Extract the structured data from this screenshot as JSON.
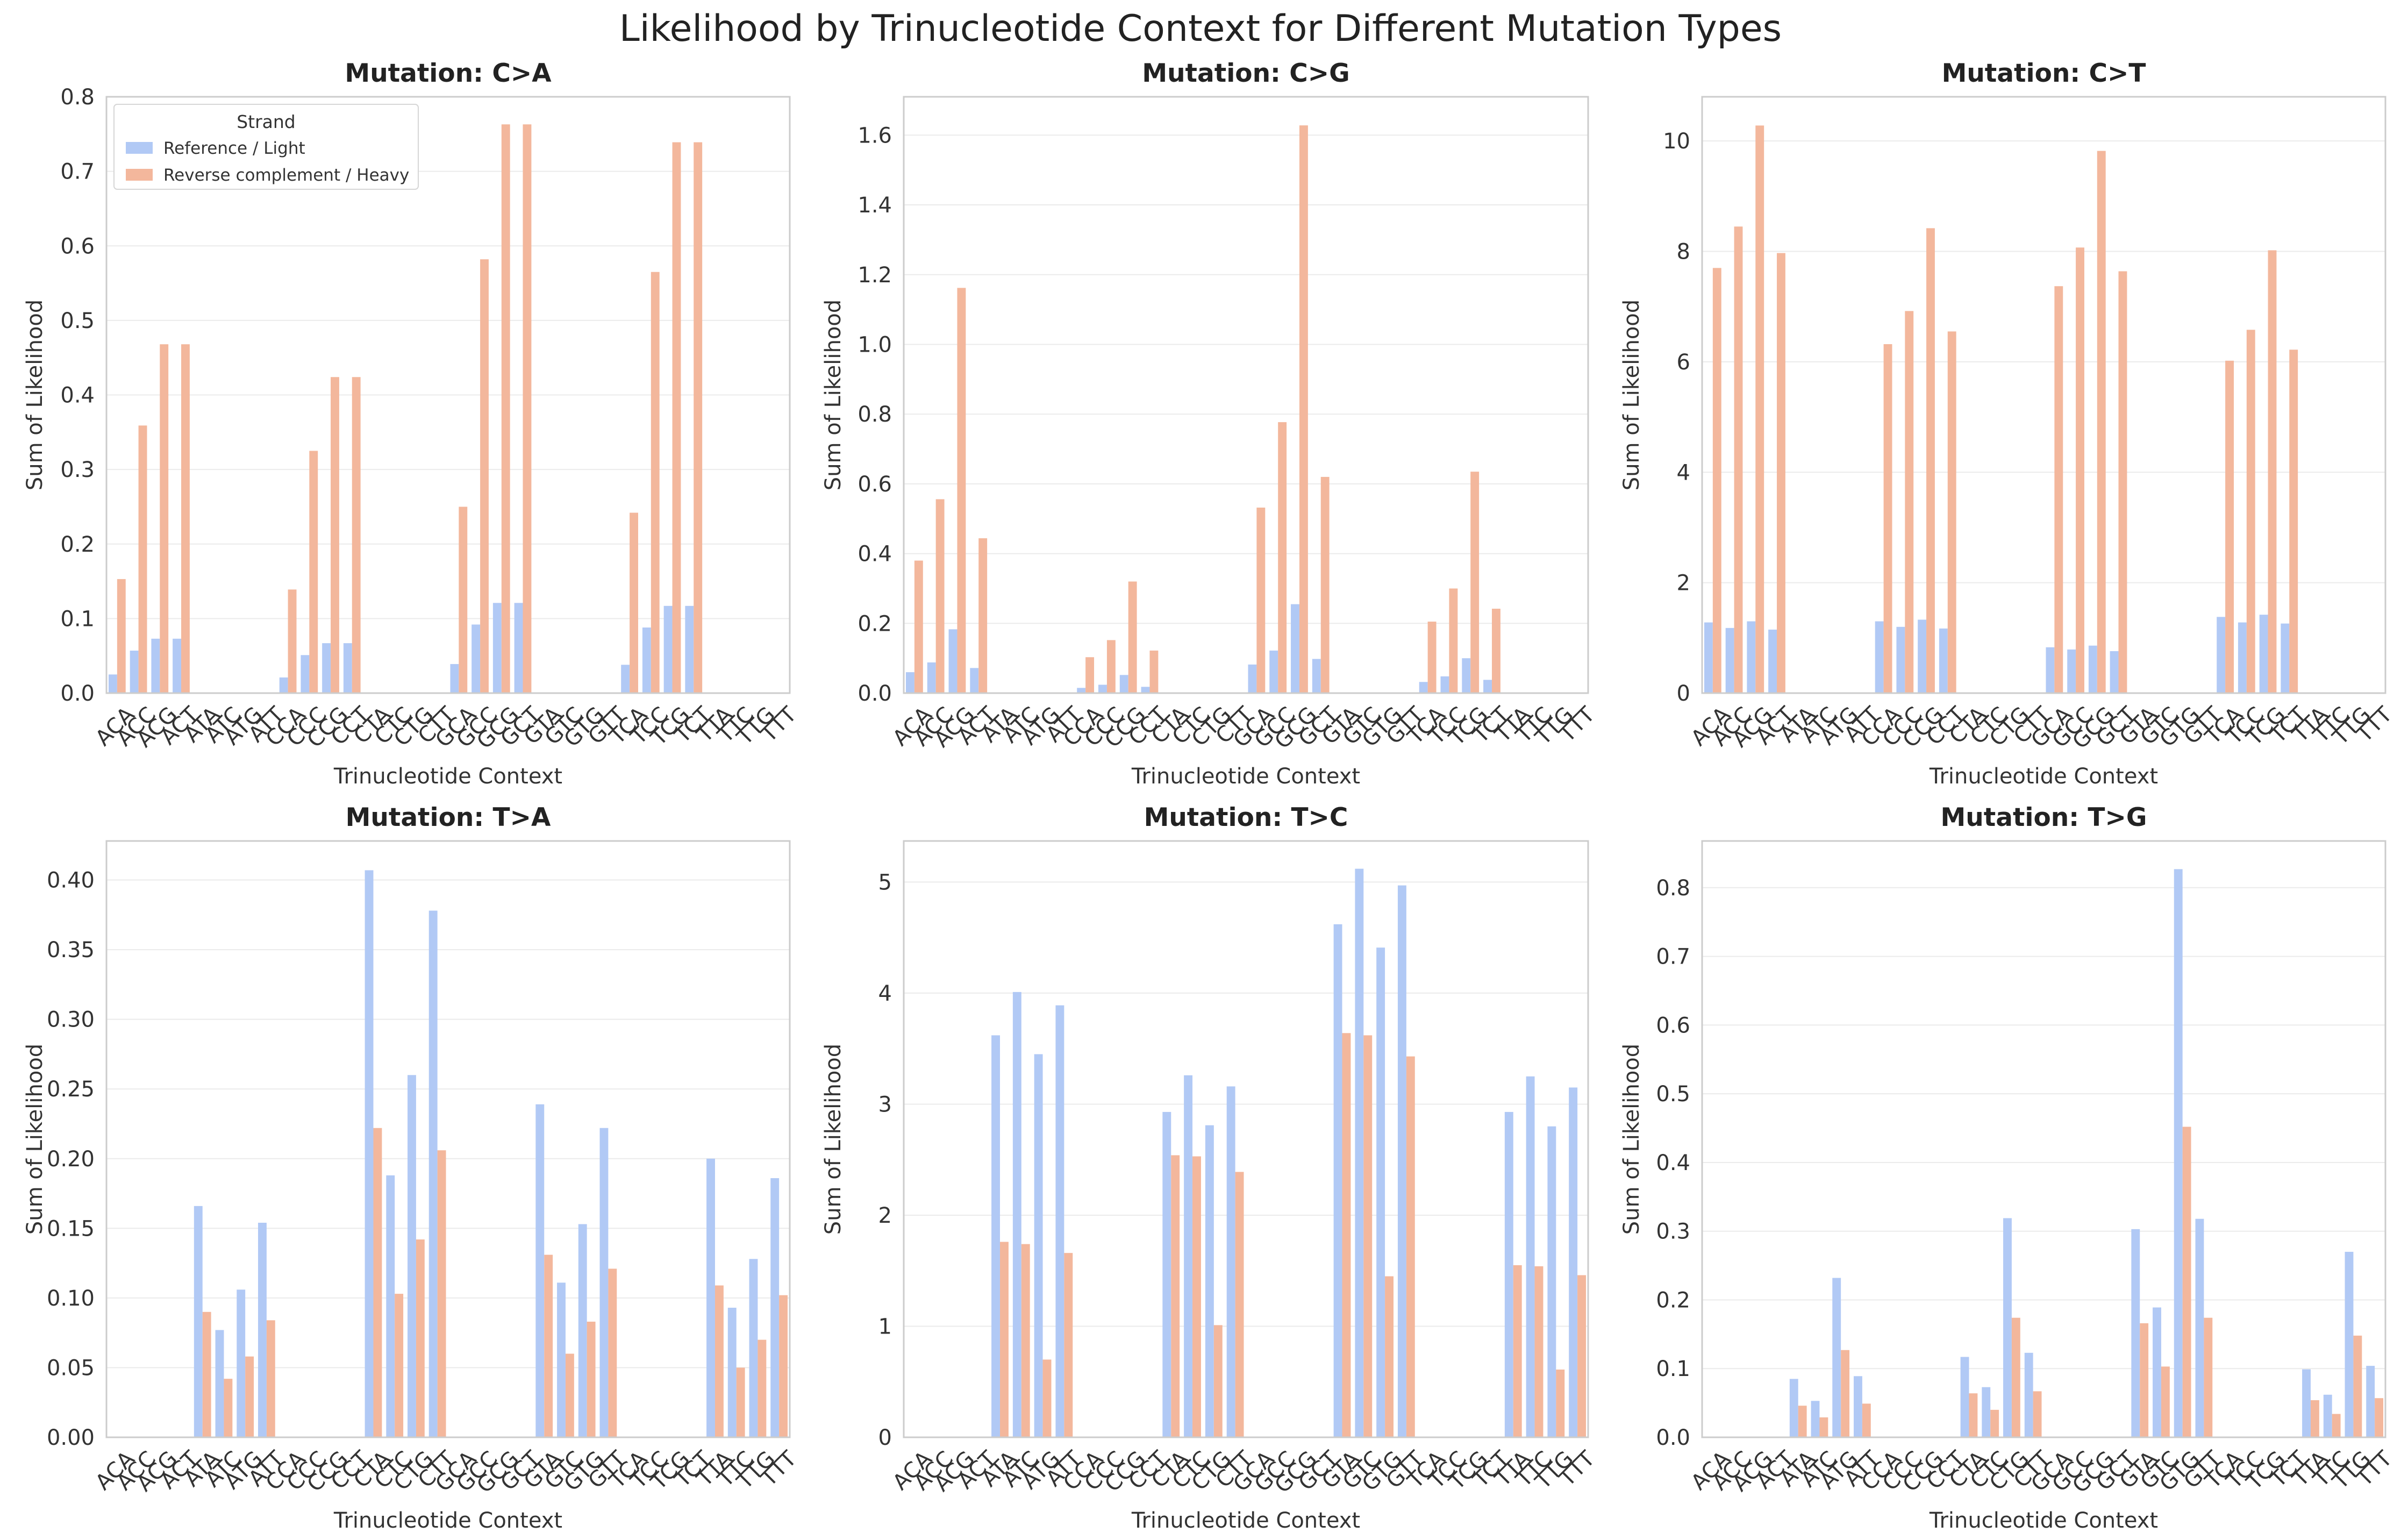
{
  "figure_title": "Likelihood by Trinucleotide Context for Different Mutation Types",
  "colors": {
    "reference": "#b1c9f5",
    "reverse": "#f3b79c",
    "grid": "#ebebeb",
    "frame": "#cccccc"
  },
  "legend": {
    "title": "Strand",
    "entries": [
      "Reference / Light",
      "Reverse complement / Heavy"
    ]
  },
  "chart_data": [
    {
      "type": "bar",
      "title": "Mutation: C>A",
      "xlabel": "Trinucleotide Context",
      "ylabel": "Sum of Likelihood",
      "ylim": [
        0,
        0.8
      ],
      "yticks": [
        0,
        0.1,
        0.2,
        0.3,
        0.4,
        0.5,
        0.6,
        0.7,
        0.8
      ],
      "tick_labels": [
        "0.0",
        "0.1",
        "0.2",
        "0.3",
        "0.4",
        "0.5",
        "0.6",
        "0.7",
        "0.8"
      ],
      "categories": [
        "ACA",
        "ACC",
        "ACG",
        "ACT",
        "ATA",
        "ATC",
        "ATG",
        "ATT",
        "CCA",
        "CCC",
        "CCG",
        "CCT",
        "CTA",
        "CTC",
        "CTG",
        "CTT",
        "GCA",
        "GCC",
        "GCG",
        "GCT",
        "GTA",
        "GTC",
        "GTG",
        "GTT",
        "TCA",
        "TCC",
        "TCG",
        "TCT",
        "TTA",
        "TTC",
        "TTG",
        "TTT"
      ],
      "legend_position": "upper-left",
      "series": [
        {
          "name": "Reference / Light",
          "values": [
            0.025,
            0.057,
            0.073,
            0.073,
            0,
            0,
            0,
            0,
            0.021,
            0.051,
            0.067,
            0.067,
            0,
            0,
            0,
            0,
            0.039,
            0.092,
            0.121,
            0.121,
            0,
            0,
            0,
            0,
            0.038,
            0.088,
            0.117,
            0.117,
            0,
            0,
            0,
            0
          ]
        },
        {
          "name": "Reverse complement / Heavy",
          "values": [
            0.153,
            0.359,
            0.468,
            0.468,
            0,
            0,
            0,
            0,
            0.139,
            0.325,
            0.424,
            0.424,
            0,
            0,
            0,
            0,
            0.25,
            0.582,
            0.763,
            0.763,
            0,
            0,
            0,
            0,
            0.242,
            0.565,
            0.739,
            0.739,
            0,
            0,
            0,
            0
          ]
        }
      ]
    },
    {
      "type": "bar",
      "title": "Mutation: C>G",
      "xlabel": "Trinucleotide Context",
      "ylabel": "Sum of Likelihood",
      "ylim": [
        0,
        1.71
      ],
      "yticks": [
        0,
        0.2,
        0.4,
        0.6,
        0.8,
        1.0,
        1.2,
        1.4,
        1.6
      ],
      "tick_labels": [
        "0.0",
        "0.2",
        "0.4",
        "0.6",
        "0.8",
        "1.0",
        "1.2",
        "1.4",
        "1.6"
      ],
      "categories": [
        "ACA",
        "ACC",
        "ACG",
        "ACT",
        "ATA",
        "ATC",
        "ATG",
        "ATT",
        "CCA",
        "CCC",
        "CCG",
        "CCT",
        "CTA",
        "CTC",
        "CTG",
        "CTT",
        "GCA",
        "GCC",
        "GCG",
        "GCT",
        "GTA",
        "GTC",
        "GTG",
        "GTT",
        "TCA",
        "TCC",
        "TCG",
        "TCT",
        "TTA",
        "TTC",
        "TTG",
        "TTT"
      ],
      "series": [
        {
          "name": "Reference / Light",
          "values": [
            0.06,
            0.088,
            0.183,
            0.072,
            0,
            0,
            0,
            0,
            0.015,
            0.024,
            0.052,
            0.018,
            0,
            0,
            0,
            0,
            0.082,
            0.122,
            0.255,
            0.098,
            0,
            0,
            0,
            0,
            0.032,
            0.048,
            0.1,
            0.038,
            0,
            0,
            0,
            0
          ]
        },
        {
          "name": "Reverse complement / Heavy",
          "values": [
            0.38,
            0.556,
            1.162,
            0.444,
            0,
            0,
            0,
            0,
            0.103,
            0.152,
            0.32,
            0.122,
            0,
            0,
            0,
            0,
            0.532,
            0.777,
            1.628,
            0.62,
            0,
            0,
            0,
            0,
            0.205,
            0.3,
            0.635,
            0.242,
            0,
            0,
            0,
            0
          ]
        }
      ]
    },
    {
      "type": "bar",
      "title": "Mutation: C>T",
      "xlabel": "Trinucleotide Context",
      "ylabel": "Sum of Likelihood",
      "ylim": [
        0,
        10.8
      ],
      "yticks": [
        0,
        2,
        4,
        6,
        8,
        10
      ],
      "tick_labels": [
        "0",
        "2",
        "4",
        "6",
        "8",
        "10"
      ],
      "categories": [
        "ACA",
        "ACC",
        "ACG",
        "ACT",
        "ATA",
        "ATC",
        "ATG",
        "ATT",
        "CCA",
        "CCC",
        "CCG",
        "CCT",
        "CTA",
        "CTC",
        "CTG",
        "CTT",
        "GCA",
        "GCC",
        "GCG",
        "GCT",
        "GTA",
        "GTC",
        "GTG",
        "GTT",
        "TCA",
        "TCC",
        "TCG",
        "TCT",
        "TTA",
        "TTC",
        "TTG",
        "TTT"
      ],
      "series": [
        {
          "name": "Reference / Light",
          "values": [
            1.28,
            1.18,
            1.3,
            1.15,
            0,
            0,
            0,
            0,
            1.3,
            1.2,
            1.33,
            1.17,
            0,
            0,
            0,
            0,
            0.83,
            0.79,
            0.86,
            0.76,
            0,
            0,
            0,
            0,
            1.38,
            1.28,
            1.42,
            1.26,
            0,
            0,
            0,
            0
          ]
        },
        {
          "name": "Reverse complement / Heavy",
          "values": [
            7.7,
            8.45,
            10.28,
            7.97,
            0,
            0,
            0,
            0,
            6.32,
            6.92,
            8.42,
            6.55,
            0,
            0,
            0,
            0,
            7.37,
            8.07,
            9.82,
            7.64,
            0,
            0,
            0,
            0,
            6.02,
            6.58,
            8.02,
            6.22,
            0,
            0,
            0,
            0
          ]
        }
      ]
    },
    {
      "type": "bar",
      "title": "Mutation: T>A",
      "xlabel": "Trinucleotide Context",
      "ylabel": "Sum of Likelihood",
      "ylim": [
        0,
        0.428
      ],
      "yticks": [
        0,
        0.05,
        0.1,
        0.15,
        0.2,
        0.25,
        0.3,
        0.35,
        0.4
      ],
      "tick_labels": [
        "0.00",
        "0.05",
        "0.10",
        "0.15",
        "0.20",
        "0.25",
        "0.30",
        "0.35",
        "0.40"
      ],
      "categories": [
        "ACA",
        "ACC",
        "ACG",
        "ACT",
        "ATA",
        "ATC",
        "ATG",
        "ATT",
        "CCA",
        "CCC",
        "CCG",
        "CCT",
        "CTA",
        "CTC",
        "CTG",
        "CTT",
        "GCA",
        "GCC",
        "GCG",
        "GCT",
        "GTA",
        "GTC",
        "GTG",
        "GTT",
        "TCA",
        "TCC",
        "TCG",
        "TCT",
        "TTA",
        "TTC",
        "TTG",
        "TTT"
      ],
      "series": [
        {
          "name": "Reference / Light",
          "values": [
            0,
            0,
            0,
            0,
            0.166,
            0.077,
            0.106,
            0.154,
            0,
            0,
            0,
            0,
            0.407,
            0.188,
            0.26,
            0.378,
            0,
            0,
            0,
            0,
            0.239,
            0.111,
            0.153,
            0.222,
            0,
            0,
            0,
            0,
            0.2,
            0.093,
            0.128,
            0.186
          ]
        },
        {
          "name": "Reverse complement / Heavy",
          "values": [
            0,
            0,
            0,
            0,
            0.09,
            0.042,
            0.058,
            0.084,
            0,
            0,
            0,
            0,
            0.222,
            0.103,
            0.142,
            0.206,
            0,
            0,
            0,
            0,
            0.131,
            0.06,
            0.083,
            0.121,
            0,
            0,
            0,
            0,
            0.109,
            0.05,
            0.07,
            0.102
          ]
        }
      ]
    },
    {
      "type": "bar",
      "title": "Mutation: T>C",
      "xlabel": "Trinucleotide Context",
      "ylabel": "Sum of Likelihood",
      "ylim": [
        0,
        5.37
      ],
      "yticks": [
        0,
        1,
        2,
        3,
        4,
        5
      ],
      "tick_labels": [
        "0",
        "1",
        "2",
        "3",
        "4",
        "5"
      ],
      "categories": [
        "ACA",
        "ACC",
        "ACG",
        "ACT",
        "ATA",
        "ATC",
        "ATG",
        "ATT",
        "CCA",
        "CCC",
        "CCG",
        "CCT",
        "CTA",
        "CTC",
        "CTG",
        "CTT",
        "GCA",
        "GCC",
        "GCG",
        "GCT",
        "GTA",
        "GTC",
        "GTG",
        "GTT",
        "TCA",
        "TCC",
        "TCG",
        "TCT",
        "TTA",
        "TTC",
        "TTG",
        "TTT"
      ],
      "series": [
        {
          "name": "Reference / Light",
          "values": [
            0,
            0,
            0,
            0,
            3.62,
            4.01,
            3.45,
            3.89,
            0,
            0,
            0,
            0,
            2.93,
            3.26,
            2.81,
            3.16,
            0,
            0,
            0,
            0,
            4.62,
            5.12,
            4.41,
            4.97,
            0,
            0,
            0,
            0,
            2.93,
            3.25,
            2.8,
            3.15
          ]
        },
        {
          "name": "Reverse complement / Heavy",
          "values": [
            0,
            0,
            0,
            0,
            1.76,
            1.74,
            0.7,
            1.66,
            0,
            0,
            0,
            0,
            2.54,
            2.53,
            1.01,
            2.39,
            0,
            0,
            0,
            0,
            3.64,
            3.62,
            1.45,
            3.43,
            0,
            0,
            0,
            0,
            1.55,
            1.54,
            0.61,
            1.46
          ]
        }
      ]
    },
    {
      "type": "bar",
      "title": "Mutation: T>G",
      "xlabel": "Trinucleotide Context",
      "ylabel": "Sum of Likelihood",
      "ylim": [
        0,
        0.868
      ],
      "yticks": [
        0,
        0.1,
        0.2,
        0.3,
        0.4,
        0.5,
        0.6,
        0.7,
        0.8
      ],
      "tick_labels": [
        "0.0",
        "0.1",
        "0.2",
        "0.3",
        "0.4",
        "0.5",
        "0.6",
        "0.7",
        "0.8"
      ],
      "categories": [
        "ACA",
        "ACC",
        "ACG",
        "ACT",
        "ATA",
        "ATC",
        "ATG",
        "ATT",
        "CCA",
        "CCC",
        "CCG",
        "CCT",
        "CTA",
        "CTC",
        "CTG",
        "CTT",
        "GCA",
        "GCC",
        "GCG",
        "GCT",
        "GTA",
        "GTC",
        "GTG",
        "GTT",
        "TCA",
        "TCC",
        "TCG",
        "TCT",
        "TTA",
        "TTC",
        "TTG",
        "TTT"
      ],
      "series": [
        {
          "name": "Reference / Light",
          "values": [
            0,
            0,
            0,
            0,
            0.085,
            0.053,
            0.232,
            0.089,
            0,
            0,
            0,
            0,
            0.117,
            0.073,
            0.319,
            0.123,
            0,
            0,
            0,
            0,
            0.303,
            0.189,
            0.827,
            0.318,
            0,
            0,
            0,
            0,
            0.099,
            0.062,
            0.27,
            0.104
          ]
        },
        {
          "name": "Reverse complement / Heavy",
          "values": [
            0,
            0,
            0,
            0,
            0.046,
            0.029,
            0.127,
            0.049,
            0,
            0,
            0,
            0,
            0.064,
            0.04,
            0.174,
            0.067,
            0,
            0,
            0,
            0,
            0.166,
            0.103,
            0.452,
            0.174,
            0,
            0,
            0,
            0,
            0.054,
            0.034,
            0.148,
            0.057
          ]
        }
      ]
    }
  ]
}
